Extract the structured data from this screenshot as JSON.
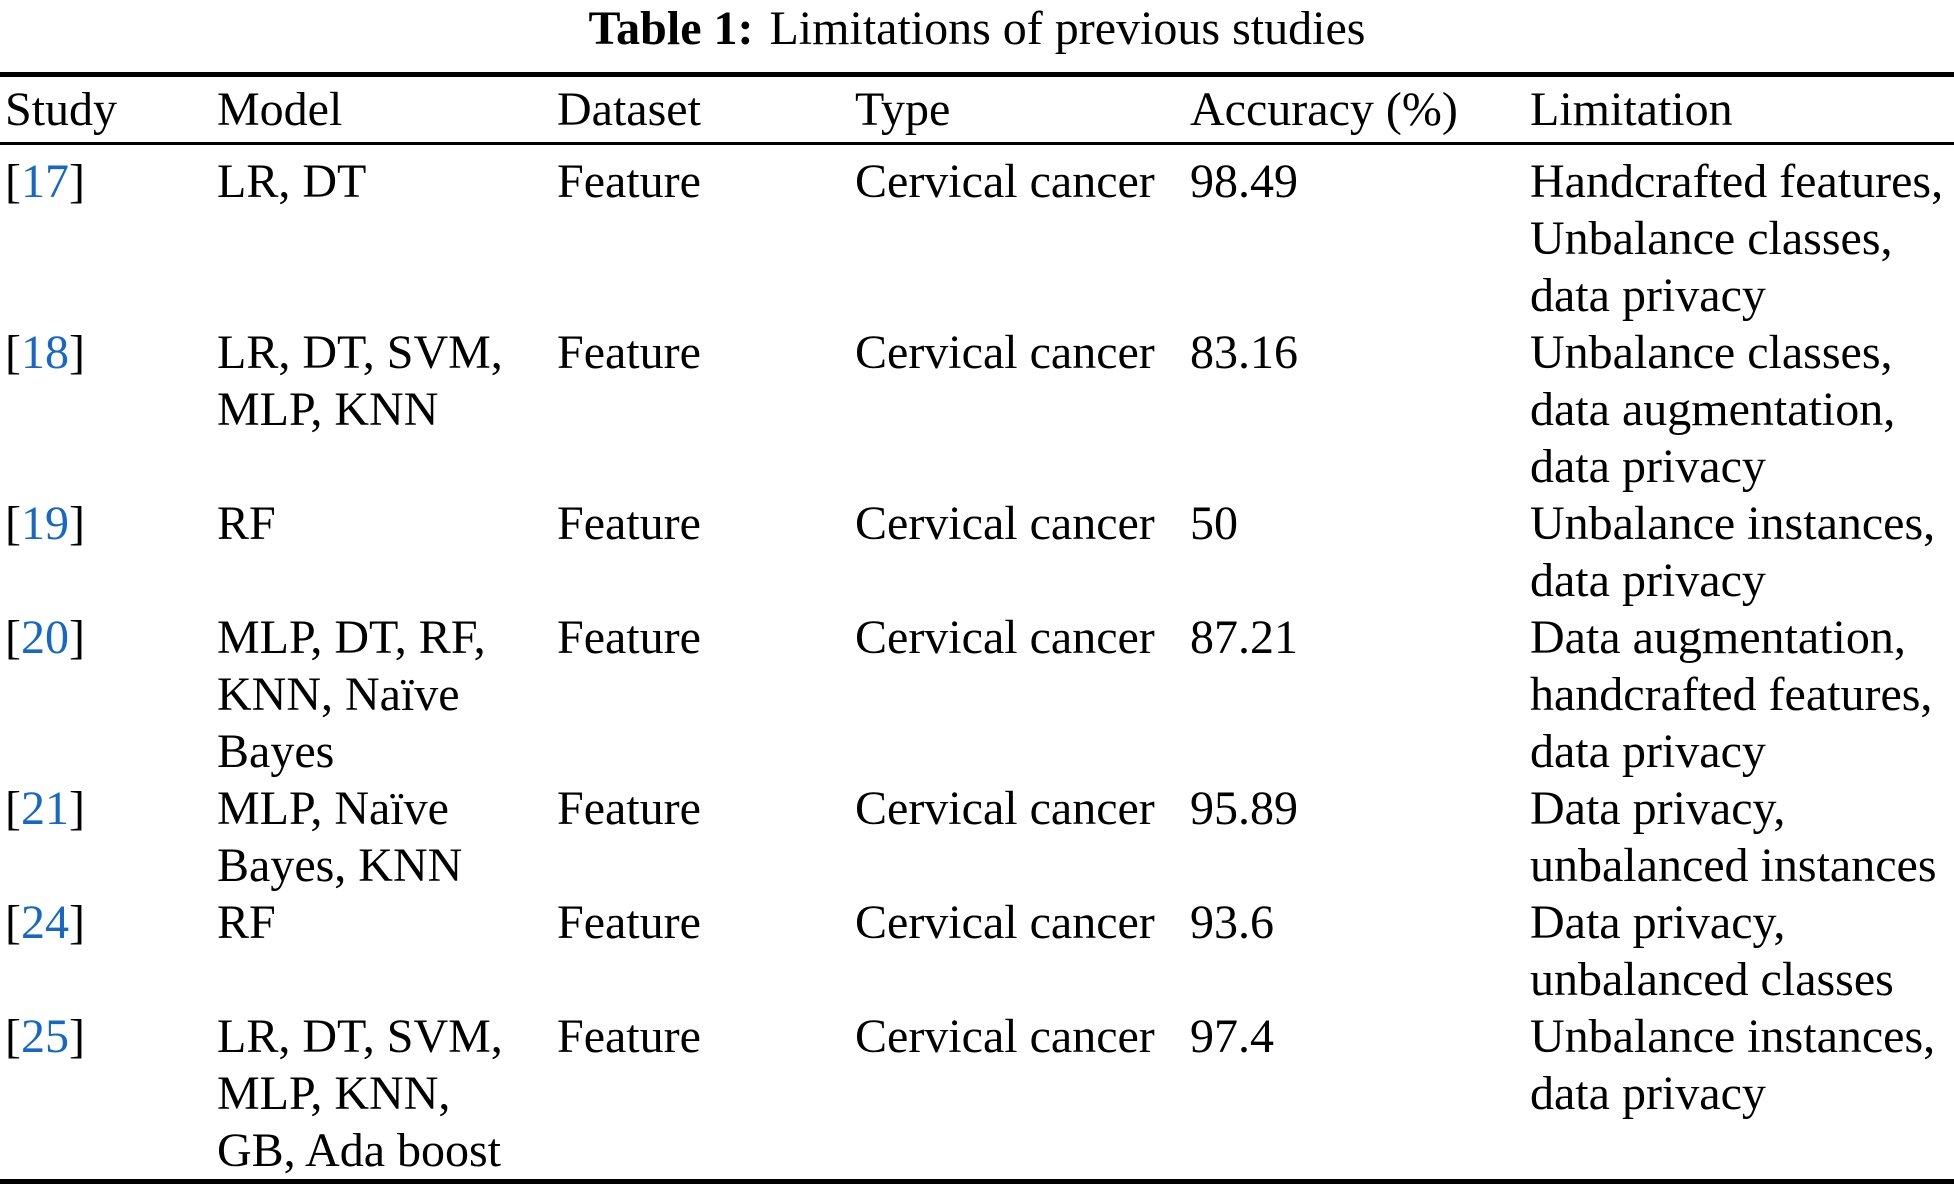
{
  "caption": {
    "label": "Table 1:",
    "title": "Limitations of previous studies"
  },
  "table": {
    "columns": [
      "Study",
      "Model",
      "Dataset",
      "Type",
      "Accuracy (%)",
      "Limitation"
    ],
    "citation_brackets": [
      "[",
      "]"
    ],
    "rows": [
      {
        "ref": "17",
        "model": "LR, DT",
        "dataset": "Feature",
        "type": "Cervical cancer",
        "accuracy": "98.49",
        "limitation": [
          "Handcrafted features,",
          "Unbalance classes,",
          "data privacy"
        ]
      },
      {
        "ref": "18",
        "model": [
          "LR, DT, SVM,",
          "MLP, KNN"
        ],
        "dataset": "Feature",
        "type": "Cervical cancer",
        "accuracy": "83.16",
        "limitation": [
          "Unbalance classes,",
          "data augmentation,",
          "data privacy"
        ]
      },
      {
        "ref": "19",
        "model": "RF",
        "dataset": "Feature",
        "type": "Cervical cancer",
        "accuracy": "50",
        "limitation": [
          "Unbalance instances,",
          "data privacy"
        ]
      },
      {
        "ref": "20",
        "model": [
          "MLP, DT, RF,",
          "KNN, Naïve",
          "Bayes"
        ],
        "dataset": "Feature",
        "type": "Cervical cancer",
        "accuracy": "87.21",
        "limitation": [
          "Data augmentation,",
          "handcrafted features,",
          "data privacy"
        ]
      },
      {
        "ref": "21",
        "model": [
          "MLP, Naïve",
          "Bayes, KNN"
        ],
        "dataset": "Feature",
        "type": "Cervical cancer",
        "accuracy": "95.89",
        "limitation": [
          "Data privacy,",
          "unbalanced instances"
        ]
      },
      {
        "ref": "24",
        "model": "RF",
        "dataset": "Feature",
        "type": "Cervical cancer",
        "accuracy": "93.6",
        "limitation": [
          "Data privacy,",
          "unbalanced classes"
        ]
      },
      {
        "ref": "25",
        "model": [
          "LR, DT, SVM,",
          "MLP, KNN,",
          "GB, Ada boost"
        ],
        "dataset": "Feature",
        "type": "Cervical cancer",
        "accuracy": "97.4",
        "limitation": [
          "Unbalance instances,",
          "data privacy"
        ]
      }
    ]
  },
  "colors": {
    "citation_blue": "#1667c6",
    "text": "#000000",
    "rule": "#000000",
    "background": "#ffffff"
  }
}
